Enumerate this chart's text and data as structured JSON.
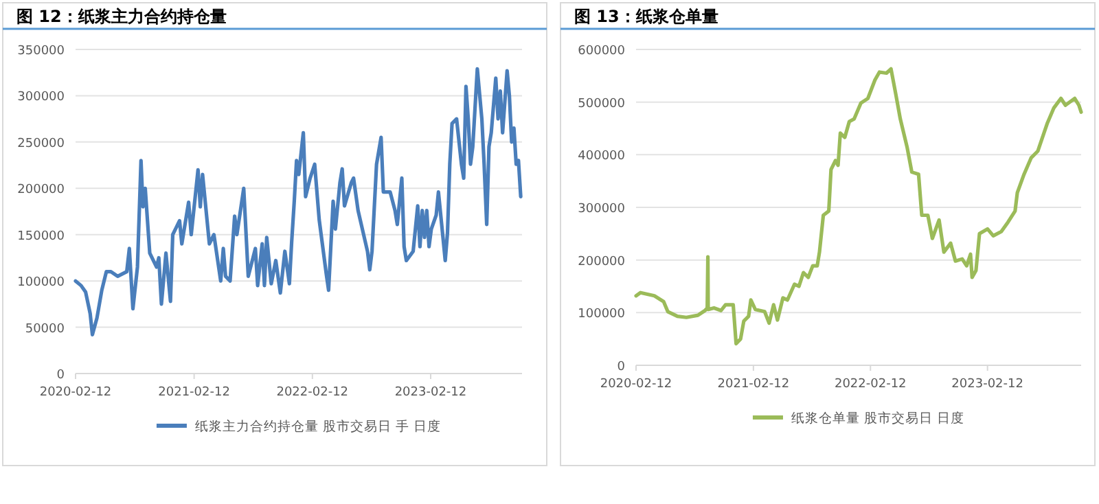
{
  "chart_data": [
    {
      "type": "line",
      "title": "图 12：纸浆主力合约持仓量",
      "xlim": [
        "2020-02-12",
        "2023-11-21"
      ],
      "xticks": [
        "2020-02-12",
        "2021-02-12",
        "2022-02-12",
        "2023-02-12"
      ],
      "ylim": [
        0,
        350000
      ],
      "yticks": [
        0,
        50000,
        100000,
        150000,
        200000,
        250000,
        300000,
        350000
      ],
      "grid": "y",
      "legend": "bottom",
      "x": [
        "2020-02-12",
        "2020-02-29",
        "2020-03-14",
        "2020-03-28",
        "2020-04-04",
        "2020-04-18",
        "2020-05-03",
        "2020-05-17",
        "2020-05-31",
        "2020-06-21",
        "2020-07-19",
        "2020-07-27",
        "2020-08-07",
        "2020-08-21",
        "2020-09-01",
        "2020-09-07",
        "2020-09-14",
        "2020-09-28",
        "2020-10-19",
        "2020-10-26",
        "2020-11-03",
        "2020-11-17",
        "2020-12-01",
        "2020-12-08",
        "2020-12-29",
        "2021-01-05",
        "2021-01-26",
        "2021-02-03",
        "2021-02-24",
        "2021-03-03",
        "2021-03-10",
        "2021-03-31",
        "2021-04-14",
        "2021-05-05",
        "2021-05-13",
        "2021-05-20",
        "2021-06-03",
        "2021-06-17",
        "2021-06-24",
        "2021-07-15",
        "2021-07-29",
        "2021-08-20",
        "2021-08-27",
        "2021-09-10",
        "2021-09-17",
        "2021-09-24",
        "2021-10-08",
        "2021-10-22",
        "2021-11-05",
        "2021-11-19",
        "2021-12-03",
        "2021-12-10",
        "2021-12-18",
        "2021-12-25",
        "2022-01-01",
        "2022-01-15",
        "2022-01-22",
        "2022-02-05",
        "2022-02-19",
        "2022-03-05",
        "2022-03-27",
        "2022-04-03",
        "2022-04-17",
        "2022-04-24",
        "2022-05-08",
        "2022-05-15",
        "2022-05-22",
        "2022-06-12",
        "2022-06-19",
        "2022-07-03",
        "2022-08-01",
        "2022-08-08",
        "2022-08-15",
        "2022-08-29",
        "2022-09-12",
        "2022-09-19",
        "2022-10-10",
        "2022-10-25",
        "2022-11-01",
        "2022-11-15",
        "2022-11-22",
        "2022-11-29",
        "2022-12-20",
        "2023-01-03",
        "2023-01-10",
        "2023-01-17",
        "2023-01-24",
        "2023-01-31",
        "2023-02-07",
        "2023-02-14",
        "2023-03-01",
        "2023-03-08",
        "2023-03-22",
        "2023-03-29",
        "2023-04-05",
        "2023-04-12",
        "2023-04-19",
        "2023-05-03",
        "2023-05-18",
        "2023-05-25",
        "2023-06-01",
        "2023-06-08",
        "2023-06-15",
        "2023-06-22",
        "2023-07-06",
        "2023-07-20",
        "2023-07-27",
        "2023-08-04",
        "2023-08-11",
        "2023-08-18",
        "2023-09-01",
        "2023-09-08",
        "2023-09-15",
        "2023-09-22",
        "2023-10-06",
        "2023-10-13",
        "2023-10-20",
        "2023-10-27",
        "2023-11-03",
        "2023-11-10",
        "2023-11-17"
      ],
      "series": [
        {
          "name": "纸浆主力合约持仓量 股市交易日 手 日度",
          "color": "#4a7ebb",
          "values": [
            100000,
            95000,
            88000,
            65000,
            42000,
            60000,
            90000,
            110000,
            110000,
            105000,
            110000,
            135000,
            70000,
            115000,
            230000,
            180000,
            200000,
            130000,
            115000,
            125000,
            75000,
            130000,
            78000,
            150000,
            165000,
            140000,
            185000,
            150000,
            220000,
            180000,
            215000,
            140000,
            150000,
            100000,
            135000,
            105000,
            100000,
            170000,
            150000,
            200000,
            105000,
            135000,
            95000,
            140000,
            95000,
            147000,
            97000,
            122000,
            87000,
            132000,
            97000,
            142000,
            186000,
            230000,
            215000,
            260000,
            191000,
            211000,
            226000,
            166000,
            107000,
            90000,
            186000,
            156000,
            206000,
            221000,
            181000,
            206000,
            211000,
            176000,
            132000,
            112000,
            132000,
            226000,
            255000,
            196000,
            196000,
            176000,
            161000,
            211000,
            137000,
            122000,
            132000,
            181000,
            137000,
            176000,
            147000,
            176000,
            137000,
            156000,
            171000,
            196000,
            147000,
            122000,
            152000,
            226000,
            270000,
            275000,
            226000,
            211000,
            310000,
            275000,
            226000,
            245000,
            329000,
            275000,
            226000,
            161000,
            245000,
            260000,
            319000,
            275000,
            305000,
            260000,
            327000,
            300000,
            250000,
            265000,
            226000,
            230000,
            191000
          ]
        }
      ]
    },
    {
      "type": "line",
      "title": "图 13：纸浆仓单量",
      "xlim": [
        "2020-02-12",
        "2023-12-01"
      ],
      "xticks": [
        "2020-02-12",
        "2021-02-12",
        "2022-02-12",
        "2023-02-12"
      ],
      "ylim": [
        0,
        600000
      ],
      "yticks": [
        0,
        100000,
        200000,
        300000,
        400000,
        500000,
        600000
      ],
      "grid": "y",
      "legend": "bottom",
      "x": [
        "2020-02-12",
        "2020-02-26",
        "2020-04-09",
        "2020-05-08",
        "2020-05-21",
        "2020-06-20",
        "2020-07-18",
        "2020-08-23",
        "2020-09-14",
        "2020-09-21",
        "2020-09-23",
        "2020-09-24",
        "2020-10-12",
        "2020-11-03",
        "2020-11-17",
        "2020-12-11",
        "2020-12-20",
        "2021-01-03",
        "2021-01-13",
        "2021-01-28",
        "2021-02-04",
        "2021-02-18",
        "2021-03-19",
        "2021-04-02",
        "2021-04-16",
        "2021-04-28",
        "2021-05-15",
        "2021-05-29",
        "2021-06-20",
        "2021-07-04",
        "2021-07-18",
        "2021-08-02",
        "2021-08-16",
        "2021-08-30",
        "2021-09-06",
        "2021-09-18",
        "2021-10-05",
        "2021-10-12",
        "2021-10-26",
        "2021-11-03",
        "2021-11-10",
        "2021-11-24",
        "2021-12-08",
        "2021-12-23",
        "2022-01-13",
        "2022-02-04",
        "2022-02-26",
        "2022-03-12",
        "2022-04-03",
        "2022-04-17",
        "2022-05-02",
        "2022-05-16",
        "2022-06-06",
        "2022-06-21",
        "2022-07-12",
        "2022-07-22",
        "2022-08-10",
        "2022-08-24",
        "2022-09-14",
        "2022-09-29",
        "2022-10-20",
        "2022-11-04",
        "2022-11-25",
        "2022-12-09",
        "2022-12-21",
        "2022-12-26",
        "2023-01-07",
        "2023-01-18",
        "2023-02-12",
        "2023-03-02",
        "2023-03-27",
        "2023-04-17",
        "2023-05-09",
        "2023-05-16",
        "2023-06-06",
        "2023-06-28",
        "2023-07-19",
        "2023-08-17",
        "2023-09-07",
        "2023-09-29",
        "2023-10-13",
        "2023-11-11",
        "2023-11-24",
        "2023-12-01"
      ],
      "series": [
        {
          "name": "纸浆仓单量 股市交易日 日度",
          "color": "#9bbb59",
          "values": [
            132000,
            138000,
            132000,
            121000,
            102000,
            93000,
            91000,
            95000,
            104000,
            109000,
            206000,
            106000,
            109000,
            104000,
            115000,
            115000,
            41000,
            50000,
            84000,
            93000,
            124000,
            106000,
            102000,
            80000,
            115000,
            86000,
            128000,
            124000,
            154000,
            150000,
            176000,
            167000,
            189000,
            189000,
            215000,
            285000,
            293000,
            372000,
            389000,
            380000,
            441000,
            433000,
            463000,
            468000,
            498000,
            507000,
            542000,
            557000,
            555000,
            563000,
            515000,
            468000,
            415000,
            367000,
            363000,
            285000,
            285000,
            241000,
            276000,
            215000,
            232000,
            198000,
            202000,
            189000,
            211000,
            167000,
            180000,
            250000,
            259000,
            246000,
            254000,
            272000,
            293000,
            328000,
            363000,
            394000,
            407000,
            459000,
            489000,
            507000,
            494000,
            507000,
            494000,
            481000
          ]
        }
      ]
    }
  ]
}
